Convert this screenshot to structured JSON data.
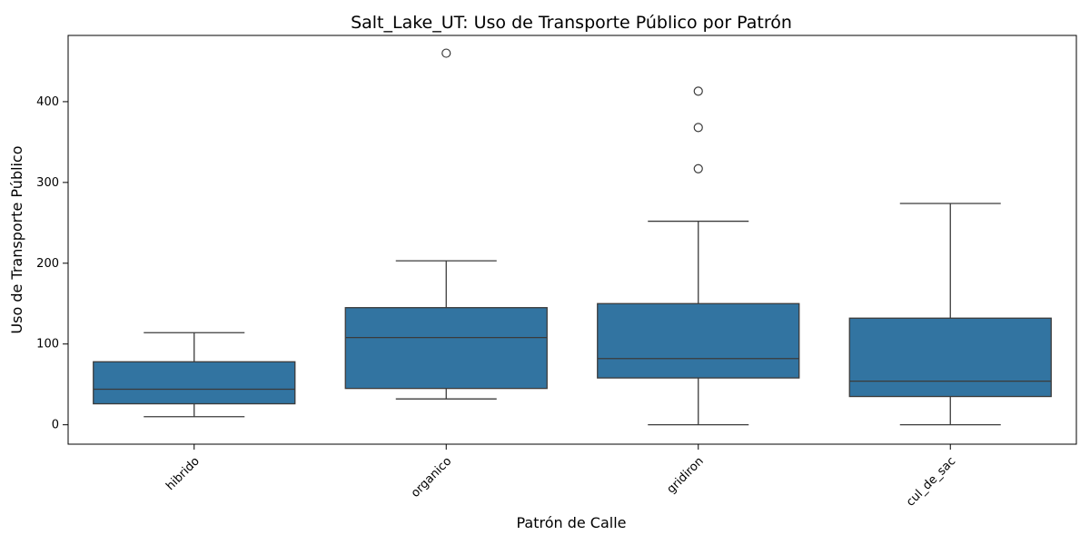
{
  "chart_data": {
    "type": "box",
    "title": "Salt_Lake_UT: Uso de Transporte Público por Patrón",
    "xlabel": "Patrón de Calle",
    "ylabel": "Uso de Transporte Público",
    "ylim": [
      -24,
      482
    ],
    "yticks": [
      0,
      100,
      200,
      300,
      400
    ],
    "grid": false,
    "box_color": "#3274a1",
    "line_color": "#3b3b3b",
    "categories": [
      "hibrido",
      "organico",
      "gridiron",
      "cul_de_sac"
    ],
    "boxes": [
      {
        "category": "hibrido",
        "whisker_low": 10,
        "q1": 26,
        "median": 44,
        "q3": 78,
        "whisker_high": 114,
        "outliers": []
      },
      {
        "category": "organico",
        "whisker_low": 32,
        "q1": 45,
        "median": 108,
        "q3": 145,
        "whisker_high": 203,
        "outliers": [
          460
        ]
      },
      {
        "category": "gridiron",
        "whisker_low": 0,
        "q1": 58,
        "median": 82,
        "q3": 150,
        "whisker_high": 252,
        "outliers": [
          317,
          368,
          413
        ]
      },
      {
        "category": "cul_de_sac",
        "whisker_low": 0,
        "q1": 35,
        "median": 54,
        "q3": 132,
        "whisker_high": 274,
        "outliers": []
      }
    ]
  }
}
